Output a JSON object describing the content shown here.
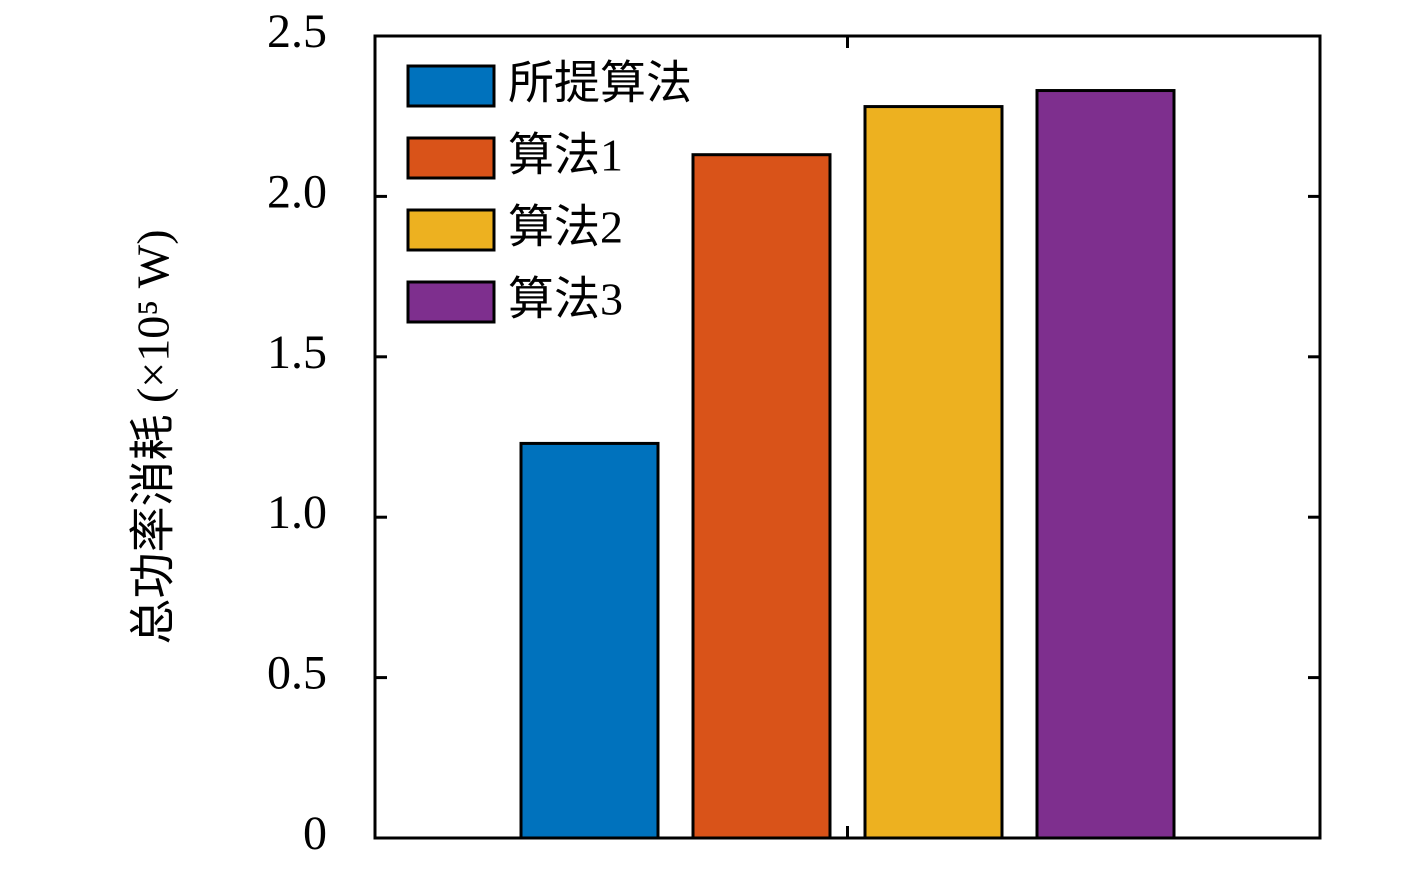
{
  "chart_data": {
    "type": "bar",
    "y_label": "总功率消耗 (×10⁵ W)",
    "categories": [
      null
    ],
    "series": [
      {
        "name": "所提算法",
        "color": "#0072bd",
        "values": [
          1.23
        ]
      },
      {
        "name": "算法1",
        "color": "#d95319",
        "values": [
          2.13
        ]
      },
      {
        "name": "算法2",
        "color": "#edb120",
        "values": [
          2.28
        ]
      },
      {
        "name": "算法3",
        "color": "#7e2f8e",
        "values": [
          2.33
        ]
      }
    ],
    "ylim": [
      0,
      2.5
    ],
    "yticks": [
      0,
      0.5,
      {
        "value": 1,
        "label": "1.0"
      },
      1.5,
      {
        "value": 2,
        "label": "2.0"
      },
      2.5
    ],
    "legend": "upper-left",
    "grid": false
  }
}
